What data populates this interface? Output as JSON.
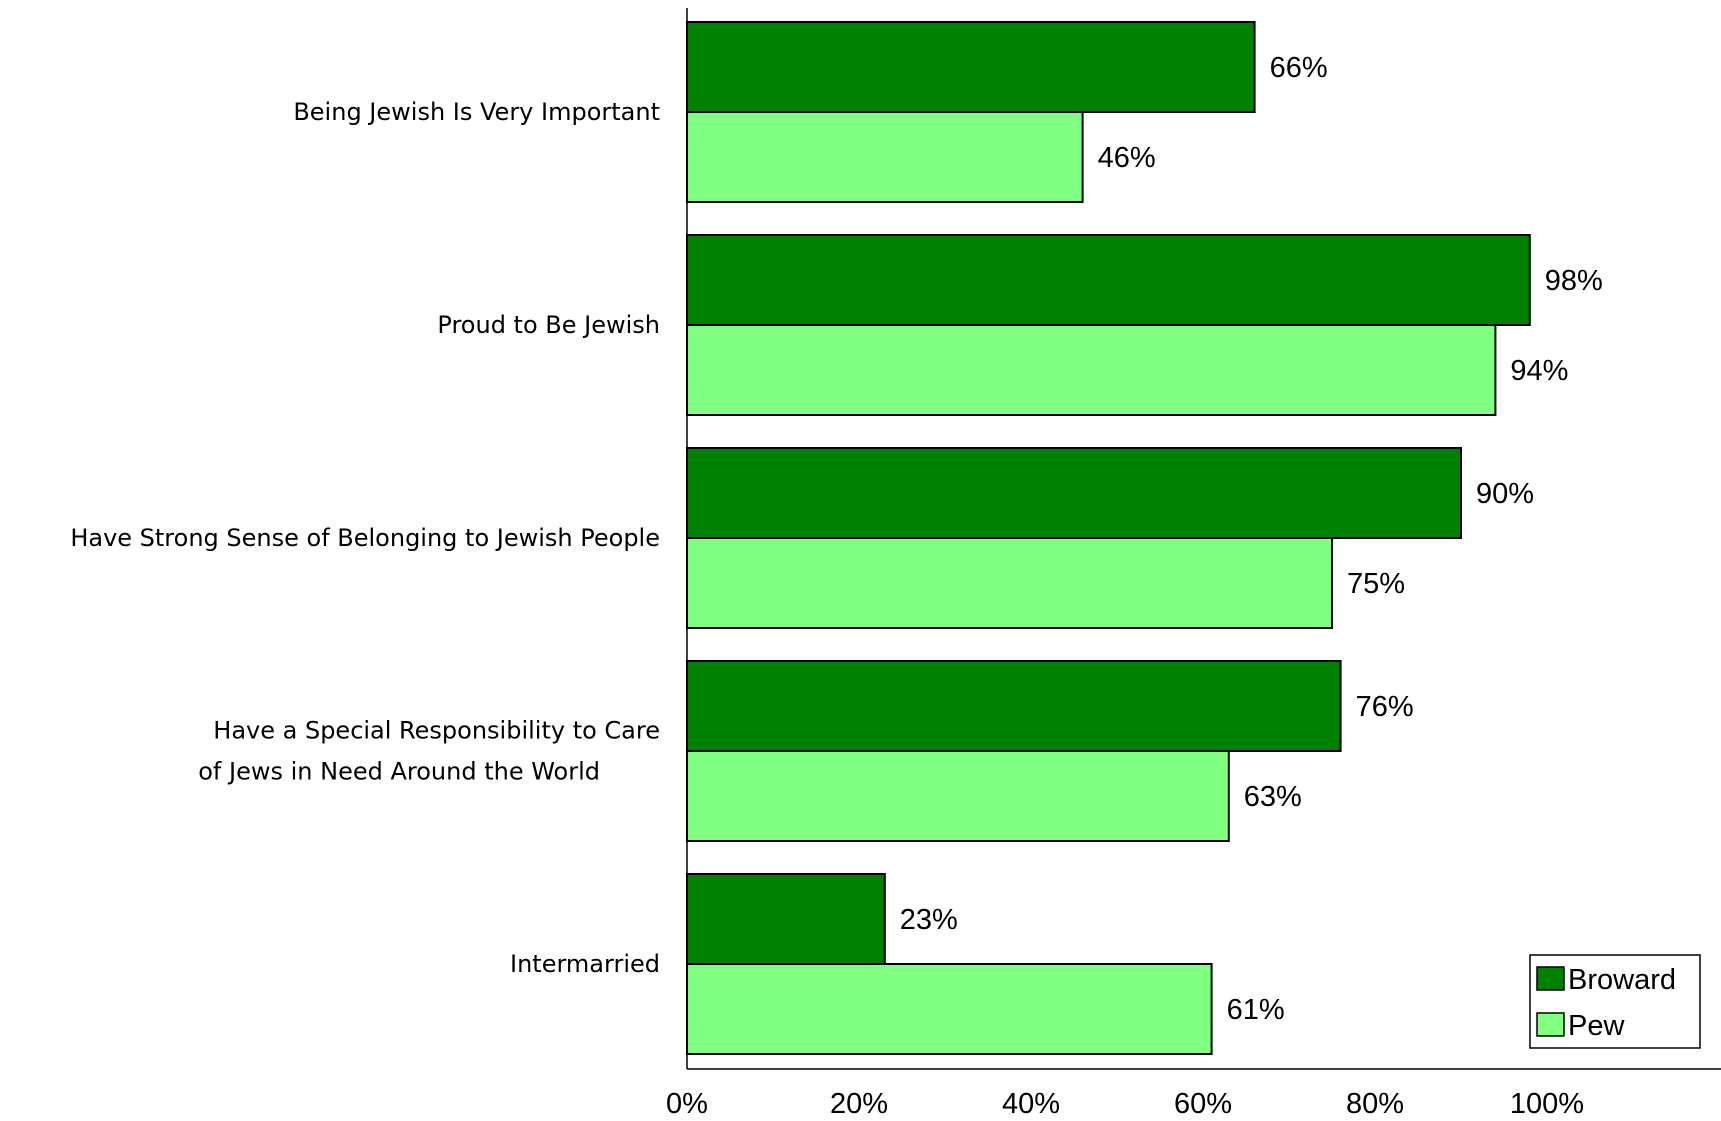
{
  "chart_data": {
    "type": "bar",
    "orientation": "horizontal",
    "categories": [
      [
        "Being Jewish Is Very Important"
      ],
      [
        "Proud to Be Jewish"
      ],
      [
        "Have Strong Sense of Belonging to Jewish People"
      ],
      [
        "Have a Special Responsibility to Care",
        "of Jews in Need Around the World"
      ],
      [
        "Intermarried"
      ]
    ],
    "series": [
      {
        "name": "Broward",
        "values": [
          66,
          98,
          90,
          76,
          23
        ],
        "labels": [
          "66%",
          "98%",
          "90%",
          "76%",
          "23%"
        ],
        "color": "#008000"
      },
      {
        "name": "Pew",
        "values": [
          46,
          94,
          75,
          63,
          61
        ],
        "labels": [
          "46%",
          "94%",
          "75%",
          "63%",
          "61%"
        ],
        "color": "#80ff80"
      }
    ],
    "x_ticks": [
      "0%",
      "20%",
      "40%",
      "60%",
      "80%",
      "100%"
    ],
    "xlim": [
      0,
      100
    ],
    "grid": false,
    "legend_position": "bottom-right"
  }
}
